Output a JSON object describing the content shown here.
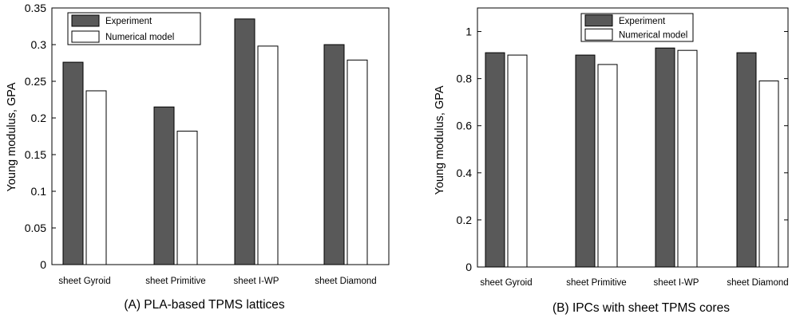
{
  "chart_data": [
    {
      "type": "bar",
      "caption": "(A) PLA-based TPMS lattices",
      "ylabel": "Young modulus, GPA",
      "xlabel": "",
      "ylim": [
        0,
        0.35
      ],
      "yticks": [
        "0",
        "0.05",
        "0.1",
        "0.15",
        "0.2",
        "0.25",
        "0.3",
        "0.35"
      ],
      "categories": [
        "sheet Gyroid",
        "sheet Primitive",
        "sheet I-WP",
        "sheet Diamond"
      ],
      "series": [
        {
          "name": "Experiment",
          "color": "#595959",
          "values": [
            0.276,
            0.215,
            0.335,
            0.3
          ]
        },
        {
          "name": "Numerical model",
          "color": "#ffffff",
          "values": [
            0.237,
            0.182,
            0.298,
            0.279
          ]
        }
      ],
      "legend": "top-left",
      "grid": false
    },
    {
      "type": "bar",
      "caption": "(B) IPCs with sheet TPMS cores",
      "ylabel": "Young modulus, GPA",
      "xlabel": "",
      "ylim": [
        0,
        1.1
      ],
      "yticks": [
        "0",
        "0.2",
        "0.4",
        "0.6",
        "0.8",
        "1"
      ],
      "categories": [
        "sheet Gyroid",
        "sheet Primitive",
        "sheet I-WP",
        "sheet Diamond"
      ],
      "series": [
        {
          "name": "Experiment",
          "color": "#595959",
          "values": [
            0.91,
            0.9,
            0.93,
            0.91
          ]
        },
        {
          "name": "Numerical model",
          "color": "#ffffff",
          "values": [
            0.9,
            0.86,
            0.92,
            0.79
          ]
        }
      ],
      "legend": "top-center",
      "grid": false
    }
  ]
}
